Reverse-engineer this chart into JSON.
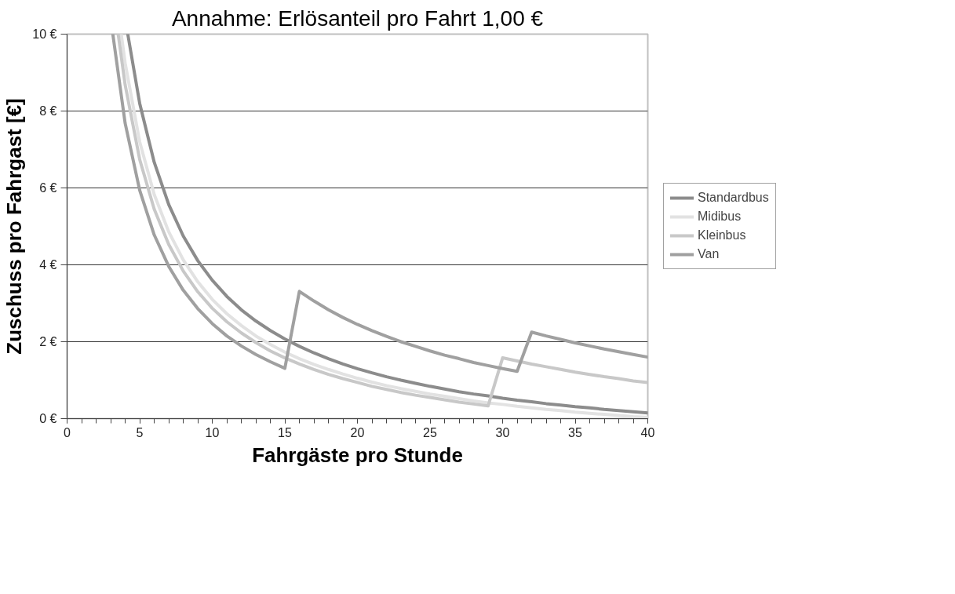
{
  "chart_data": {
    "type": "line",
    "title": "Annahme: Erlösanteil pro Fahrt 1,00 €",
    "xlabel": "Fahrgäste pro Stunde",
    "ylabel": "Zuschuss pro Fahrgast [€]",
    "xlim": [
      0,
      40
    ],
    "ylim": [
      0,
      10
    ],
    "xticks": [
      0,
      5,
      10,
      15,
      20,
      25,
      30,
      35,
      40
    ],
    "yticks": [
      {
        "value": 0,
        "label": "0 €"
      },
      {
        "value": 2,
        "label": "2 €"
      },
      {
        "value": 4,
        "label": "4 €"
      },
      {
        "value": 6,
        "label": "6 €"
      },
      {
        "value": 8,
        "label": "8 €"
      },
      {
        "value": 10,
        "label": "10 €"
      }
    ],
    "grid": "y",
    "legend": "right",
    "marker": "none",
    "line_style": "solid",
    "series": [
      {
        "name": "Standardbus",
        "color": "#8c8c8c",
        "x": [
          4.18,
          5,
          6,
          7,
          8,
          9,
          10,
          11,
          12,
          13,
          14,
          15,
          16,
          17,
          18,
          19,
          20,
          21,
          22,
          23,
          24,
          25,
          26,
          27,
          28,
          29,
          30,
          31,
          32,
          33,
          34,
          35,
          36,
          37,
          38,
          39,
          40
        ],
        "values": [
          10,
          8.2,
          6.67,
          5.57,
          4.75,
          4.11,
          3.6,
          3.18,
          2.83,
          2.54,
          2.29,
          2.07,
          1.88,
          1.71,
          1.56,
          1.42,
          1.3,
          1.19,
          1.09,
          1.0,
          0.92,
          0.84,
          0.77,
          0.7,
          0.64,
          0.59,
          0.53,
          0.48,
          0.44,
          0.39,
          0.35,
          0.31,
          0.28,
          0.24,
          0.21,
          0.18,
          0.15
        ]
      },
      {
        "name": "Midibus",
        "color": "#e2e2e2",
        "x": [
          3.73,
          4,
          5,
          6,
          7,
          8,
          9,
          10,
          11,
          12,
          13,
          14,
          15,
          16,
          17,
          18,
          19,
          20,
          21,
          22,
          23,
          24,
          25,
          26,
          27,
          28,
          29,
          30,
          31,
          32,
          33,
          34,
          35,
          36,
          37,
          38,
          39,
          40
        ],
        "values": [
          10,
          9.25,
          7.2,
          5.83,
          4.86,
          4.13,
          3.56,
          3.1,
          2.73,
          2.42,
          2.15,
          1.93,
          1.73,
          1.56,
          1.41,
          1.28,
          1.16,
          1.05,
          0.95,
          0.86,
          0.78,
          0.71,
          0.64,
          0.58,
          0.52,
          0.46,
          0.41,
          0.37,
          0.32,
          0.28,
          0.24,
          0.21,
          0.17,
          0.14,
          0.11,
          0.08,
          0.05,
          0.03
        ]
      },
      {
        "name": "Kleinbus",
        "color": "#c8c8c8",
        "x": [
          3.52,
          4,
          5,
          6,
          7,
          8,
          9,
          10,
          11,
          12,
          13,
          14,
          15,
          16,
          17,
          18,
          19,
          20,
          21,
          22,
          23,
          24,
          25,
          26,
          27,
          28,
          29,
          30,
          31,
          32,
          33,
          34,
          35,
          36,
          37,
          38,
          39,
          40
        ],
        "values": [
          10,
          8.68,
          6.74,
          5.45,
          4.53,
          3.84,
          3.3,
          2.87,
          2.52,
          2.23,
          1.98,
          1.76,
          1.58,
          1.42,
          1.28,
          1.15,
          1.04,
          0.94,
          0.84,
          0.76,
          0.68,
          0.61,
          0.55,
          0.49,
          0.43,
          0.38,
          0.33,
          1.58,
          1.5,
          1.42,
          1.35,
          1.28,
          1.21,
          1.15,
          1.09,
          1.04,
          0.98,
          0.94
        ]
      },
      {
        "name": "Van",
        "color": "#a0a0a0",
        "x": [
          3.15,
          4,
          5,
          6,
          7,
          8,
          9,
          10,
          11,
          12,
          13,
          14,
          15,
          16,
          17,
          18,
          19,
          20,
          21,
          22,
          23,
          24,
          25,
          26,
          27,
          28,
          29,
          30,
          31,
          32,
          33,
          34,
          35,
          36,
          37,
          38,
          39,
          40
        ],
        "values": [
          10,
          7.68,
          5.94,
          4.78,
          3.96,
          3.34,
          2.86,
          2.47,
          2.15,
          1.89,
          1.67,
          1.48,
          1.31,
          3.31,
          3.06,
          2.83,
          2.63,
          2.45,
          2.29,
          2.14,
          2.0,
          1.88,
          1.76,
          1.65,
          1.56,
          1.46,
          1.38,
          1.3,
          1.23,
          2.25,
          2.15,
          2.06,
          1.97,
          1.89,
          1.81,
          1.74,
          1.67,
          1.6
        ]
      }
    ]
  }
}
